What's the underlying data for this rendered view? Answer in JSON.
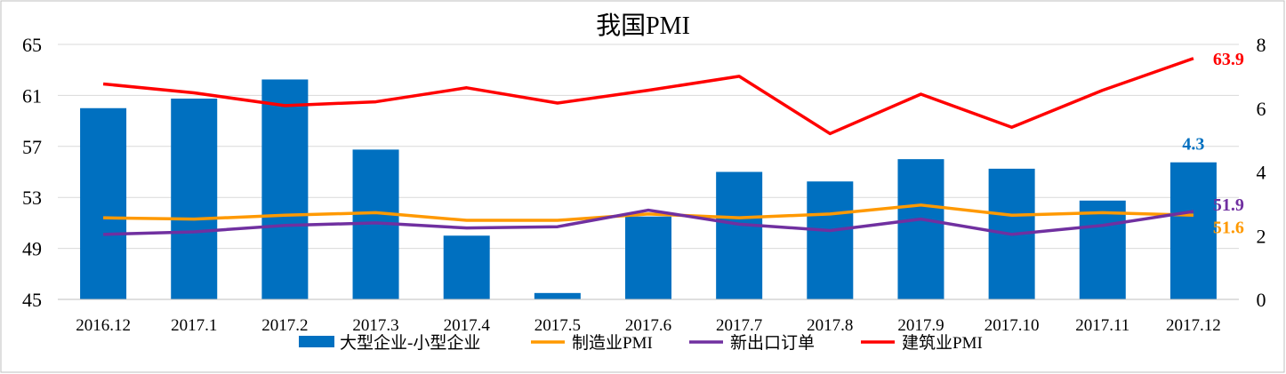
{
  "chart_data": {
    "type": "bar+line",
    "title": "我国PMI",
    "categories": [
      "2016.12",
      "2017.1",
      "2017.2",
      "2017.3",
      "2017.4",
      "2017.5",
      "2017.6",
      "2017.7",
      "2017.8",
      "2017.9",
      "2017.10",
      "2017.11",
      "2017.12"
    ],
    "left_axis": {
      "range": [
        45,
        65
      ],
      "ticks": [
        "45",
        "49",
        "53",
        "57",
        "61",
        "65"
      ]
    },
    "right_axis": {
      "range": [
        0,
        8
      ],
      "ticks": [
        "0",
        "2",
        "4",
        "6",
        "8"
      ]
    },
    "grid": true,
    "legend_position": "bottom",
    "series": [
      {
        "name": "大型企业-小型企业",
        "type": "bar",
        "axis": "right",
        "color": "#0070C0",
        "values": [
          6.0,
          6.3,
          6.9,
          4.7,
          2.0,
          0.2,
          2.6,
          4.0,
          3.7,
          4.4,
          4.1,
          3.1,
          4.3
        ],
        "last_label": "4.3"
      },
      {
        "name": "制造业PMI",
        "type": "line",
        "axis": "left",
        "color": "#FF9900",
        "values": [
          51.4,
          51.3,
          51.6,
          51.8,
          51.2,
          51.2,
          51.7,
          51.4,
          51.7,
          52.4,
          51.6,
          51.8,
          51.6
        ],
        "last_label": "51.6"
      },
      {
        "name": "新出口订单",
        "type": "line",
        "axis": "left",
        "color": "#7030A0",
        "values": [
          50.1,
          50.3,
          50.8,
          51.0,
          50.6,
          50.7,
          52.0,
          50.9,
          50.4,
          51.3,
          50.1,
          50.8,
          51.9
        ],
        "last_label": "51.9"
      },
      {
        "name": "建筑业PMI",
        "type": "line",
        "axis": "left",
        "color": "#FF0000",
        "values": [
          61.9,
          61.2,
          60.2,
          60.5,
          61.6,
          60.4,
          61.4,
          62.5,
          58.0,
          61.1,
          58.5,
          61.4,
          63.9
        ],
        "last_label": "63.9"
      }
    ]
  }
}
